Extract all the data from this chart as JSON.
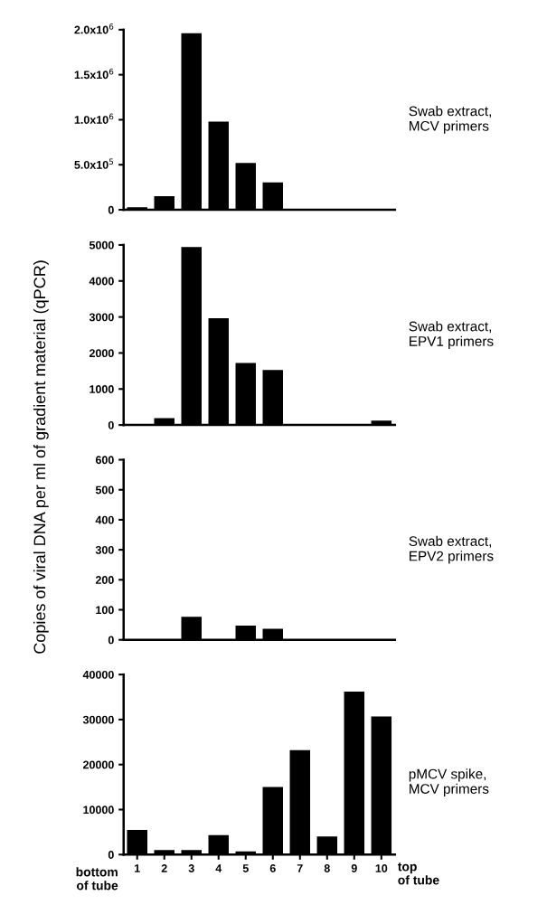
{
  "chart_data": [
    {
      "type": "bar",
      "ylabel": "Copies of viral DNA per ml of gradient material (qPCR)",
      "categories": [
        "1",
        "2",
        "3",
        "4",
        "5",
        "6",
        "7",
        "8",
        "9",
        "10"
      ],
      "values": [
        27000,
        150000,
        1960000,
        980000,
        520000,
        305000,
        3000,
        3000,
        3000,
        3000
      ],
      "color": "#000000",
      "ylim": [
        0,
        2000000
      ],
      "yticks": [
        0,
        {
          "value": 500000,
          "label": "5.0x10$^{5}$"
        },
        {
          "value": 1000000,
          "label": "1.0x10$^{6}$"
        },
        {
          "value": 1500000,
          "label": "1.5x10$^{6}$"
        },
        {
          "value": 2000000,
          "label": "2.0x10$^{6}$"
        }
      ],
      "tick_labels": "y",
      "annotations": [
        "Swab extract,\nMCV primers"
      ]
    },
    {
      "type": "bar",
      "categories": [
        "1",
        "2",
        "3",
        "4",
        "5",
        "6",
        "7",
        "8",
        "9",
        "10"
      ],
      "values": [
        25,
        190,
        4940,
        2965,
        1720,
        1525,
        25,
        25,
        25,
        125
      ],
      "color": "#000000",
      "ylim": [
        0,
        5000
      ],
      "yticks": [
        0,
        1000,
        2000,
        3000,
        4000,
        5000
      ],
      "tick_labels": "y",
      "annotations": [
        "Swab extract,\nEPV1 primers"
      ]
    },
    {
      "type": "bar",
      "categories": [
        "1",
        "2",
        "3",
        "4",
        "5",
        "6",
        "7",
        "8",
        "9",
        "10"
      ],
      "values": [
        2,
        2,
        77,
        2,
        47,
        37,
        2,
        2,
        2,
        2
      ],
      "color": "#000000",
      "ylim": [
        0,
        600
      ],
      "yticks": [
        0,
        100,
        200,
        300,
        400,
        500,
        600
      ],
      "tick_labels": "y",
      "annotations": [
        "Swab extract,\nEPV2 primers"
      ]
    },
    {
      "type": "bar",
      "categories": [
        "1",
        "2",
        "3",
        "4",
        "5",
        "6",
        "7",
        "8",
        "9",
        "10"
      ],
      "values": [
        5500,
        1000,
        1000,
        4300,
        700,
        15000,
        23200,
        4000,
        36200,
        30700
      ],
      "color": "#000000",
      "ylim": [
        0,
        40000
      ],
      "yticks": [
        0,
        10000,
        20000,
        30000,
        40000
      ],
      "annotations": [
        "pMCV spike,\nMCV primers",
        "bottom\nof tube",
        "top\nof tube"
      ]
    }
  ]
}
